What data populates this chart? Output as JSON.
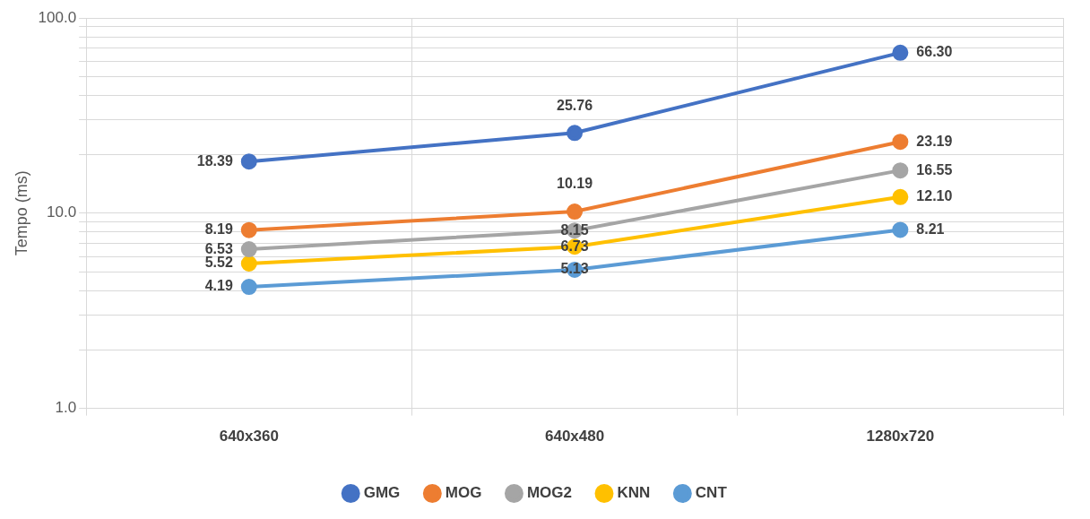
{
  "chart_data": {
    "type": "line",
    "ylabel": "Tempo (ms)",
    "categories": [
      "640x360",
      "640x480",
      "1280x720"
    ],
    "series": [
      {
        "name": "GMG",
        "color": "#4472c4",
        "values": [
          18.39,
          25.76,
          66.3
        ],
        "value_labels": [
          "18.39",
          "25.76",
          "66.30"
        ]
      },
      {
        "name": "MOG",
        "color": "#ed7d31",
        "values": [
          8.19,
          10.19,
          23.19
        ],
        "value_labels": [
          "8.19",
          "10.19",
          "23.19"
        ]
      },
      {
        "name": "MOG2",
        "color": "#a5a5a5",
        "values": [
          6.53,
          8.15,
          16.55
        ],
        "value_labels": [
          "6.53",
          "8.15",
          "16.55"
        ]
      },
      {
        "name": "KNN",
        "color": "#ffc000",
        "values": [
          5.52,
          6.73,
          12.1
        ],
        "value_labels": [
          "5.52",
          "6.73",
          "12.10"
        ]
      },
      {
        "name": "CNT",
        "color": "#5b9bd5",
        "values": [
          4.19,
          5.13,
          8.21
        ],
        "value_labels": [
          "4.19",
          "5.13",
          "8.21"
        ]
      }
    ],
    "log": "y",
    "ylim": [
      1,
      100
    ],
    "yticks": [
      {
        "value": 1,
        "label": "1.0"
      },
      {
        "value": 2,
        "label": null
      },
      {
        "value": 3,
        "label": null
      },
      {
        "value": 4,
        "label": null
      },
      {
        "value": 5,
        "label": null
      },
      {
        "value": 6,
        "label": null
      },
      {
        "value": 7,
        "label": null
      },
      {
        "value": 8,
        "label": null
      },
      {
        "value": 9,
        "label": null
      },
      {
        "value": 10,
        "label": "10.0"
      },
      {
        "value": 20,
        "label": null
      },
      {
        "value": 30,
        "label": null
      },
      {
        "value": 40,
        "label": null
      },
      {
        "value": 50,
        "label": null
      },
      {
        "value": 60,
        "label": null
      },
      {
        "value": 70,
        "label": null
      },
      {
        "value": 80,
        "label": null
      },
      {
        "value": 90,
        "label": null
      },
      {
        "value": 100,
        "label": "100.0"
      }
    ],
    "grid": true,
    "legend": "bottom",
    "marker": "circle",
    "line_style": "solid"
  }
}
